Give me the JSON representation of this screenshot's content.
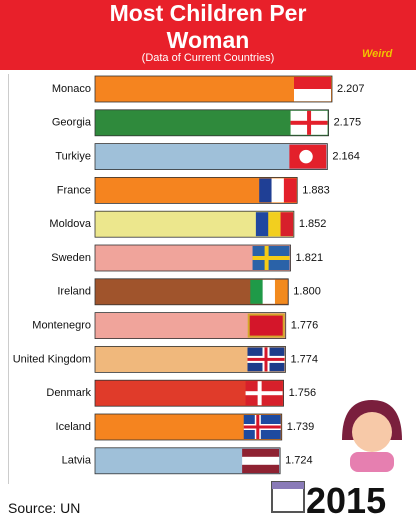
{
  "chart_data": {
    "type": "bar",
    "orientation": "horizontal",
    "title": "Most Children Per Woman",
    "subtitle": "(Data of Current Countries)",
    "categories": [
      "Monaco",
      "Georgia",
      "Turkiye",
      "France",
      "Moldova",
      "Sweden",
      "Ireland",
      "Montenegro",
      "United Kingdom",
      "Denmark",
      "Iceland",
      "Latvia"
    ],
    "values": [
      2.207,
      2.175,
      2.164,
      1.883,
      1.852,
      1.821,
      1.8,
      1.776,
      1.774,
      1.756,
      1.739,
      1.724
    ],
    "value_labels": [
      "2.207",
      "2.175",
      "2.164",
      "1.883",
      "1.852",
      "1.821",
      "1.800",
      "1.776",
      "1.774",
      "1.756",
      "1.739",
      "1.724"
    ],
    "colors": [
      "#f5841f",
      "#2f8a3c",
      "#9fc0d9",
      "#f5841f",
      "#ece78d",
      "#f0a49b",
      "#a0542c",
      "#f0a49b",
      "#f0b87c",
      "#e03b2a",
      "#f5841f",
      "#9fc0d9"
    ],
    "source": "Source: UN",
    "year": "2015",
    "logo": "Weird"
  }
}
